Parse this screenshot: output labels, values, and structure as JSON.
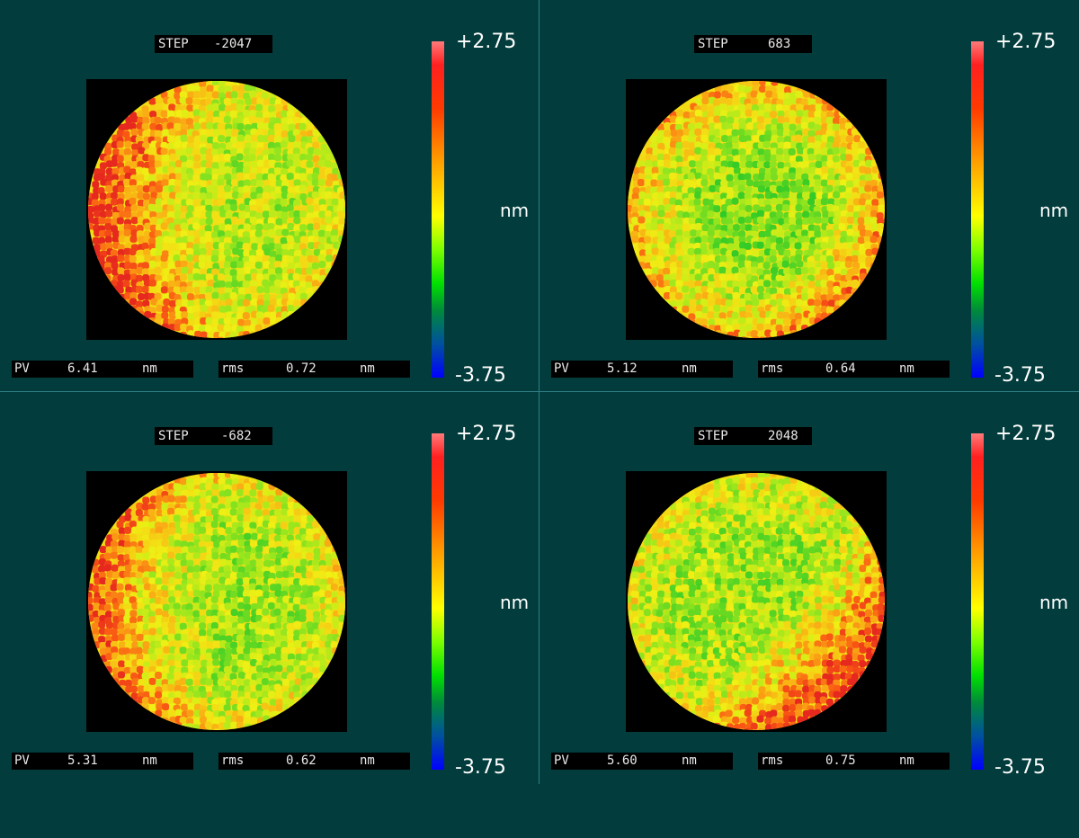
{
  "colors": {
    "background": "#033c3c",
    "divider": "#2e7c86",
    "label_bg": "#000000",
    "label_text": "#e8e8e8",
    "colorbar_top": "#ff7a7a",
    "colorbar_bottom": "#0000ff"
  },
  "panels": [
    {
      "step_label": "STEP",
      "step_value": "-2047",
      "colorbar_max": "+2.75",
      "colorbar_unit": "nm",
      "colorbar_min": "-3.75",
      "pv_label": "PV",
      "pv_value": "6.41",
      "pv_unit": "nm",
      "rms_label": "rms",
      "rms_value": "0.72",
      "rms_unit": "nm",
      "surface_icon": "phase-map-circle",
      "pattern": "warm-left"
    },
    {
      "step_label": "STEP",
      "step_value": "683",
      "colorbar_max": "+2.75",
      "colorbar_unit": "nm",
      "colorbar_min": "-3.75",
      "pv_label": "PV",
      "pv_value": "5.12",
      "pv_unit": "nm",
      "rms_label": "rms",
      "rms_value": "0.64",
      "rms_unit": "nm",
      "surface_icon": "phase-map-circle",
      "pattern": "warm-ring"
    },
    {
      "step_label": "STEP",
      "step_value": "-682",
      "colorbar_max": "+2.75",
      "colorbar_unit": "nm",
      "colorbar_min": "-3.75",
      "pv_label": "PV",
      "pv_value": "5.31",
      "pv_unit": "nm",
      "rms_label": "rms",
      "rms_value": "0.62",
      "rms_unit": "nm",
      "surface_icon": "phase-map-circle",
      "pattern": "warm-left-soft"
    },
    {
      "step_label": "STEP",
      "step_value": "2048",
      "colorbar_max": "+2.75",
      "colorbar_unit": "nm",
      "colorbar_min": "-3.75",
      "pv_label": "PV",
      "pv_value": "5.60",
      "pv_unit": "nm",
      "rms_label": "rms",
      "rms_value": "0.75",
      "rms_unit": "nm",
      "surface_icon": "phase-map-circle",
      "pattern": "warm-bottom-right"
    }
  ]
}
